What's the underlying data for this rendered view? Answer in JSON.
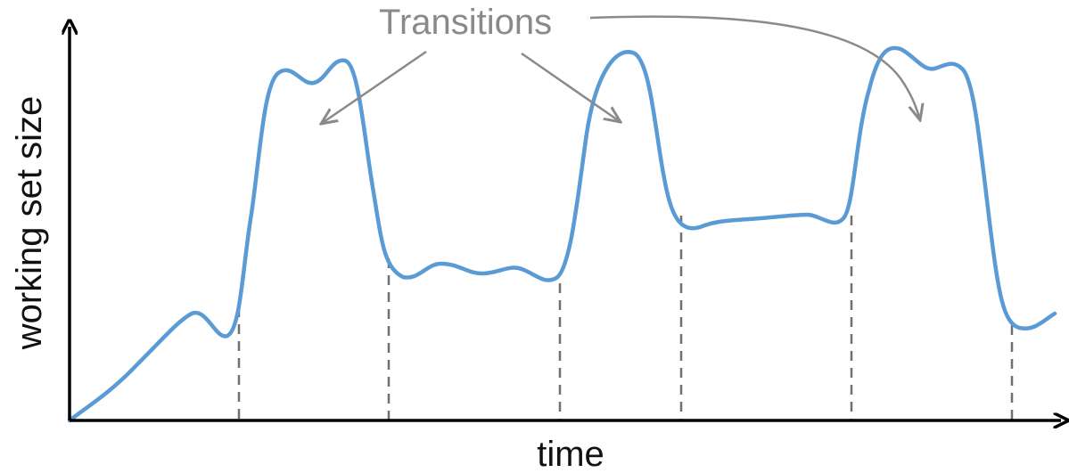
{
  "diagram": {
    "x_axis_label": "time",
    "y_axis_label": "working set size",
    "annotation": "Transitions",
    "colors": {
      "curve": "#5b9bd5",
      "axis": "#000000",
      "annotation": "#8a8a8a",
      "boundary_lines": "#707070"
    }
  }
}
